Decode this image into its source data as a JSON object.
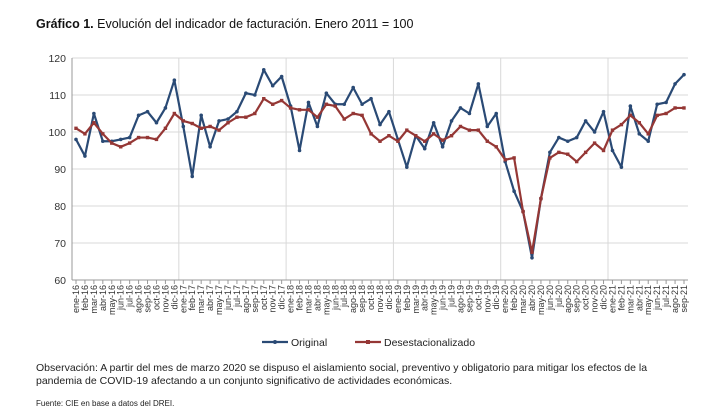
{
  "title_bold": "Gráfico 1.",
  "title_rest": " Evolución del indicador de facturación. Enero 2011 = 100",
  "observation": "Observación: A partir del mes de marzo 2020 se dispuso el aislamiento social, preventivo y obligatorio para mitigar los efectos de la pandemia de COVID-19 afectando a un conjunto significativo de actividades económicas.",
  "source": "Fuente: CIE en base a datos del DREI.",
  "chart_data": {
    "type": "line",
    "title": "Evolución del indicador de facturación. Enero 2011 = 100",
    "xlabel": "",
    "ylabel": "",
    "ylim": [
      60,
      120
    ],
    "yticks": [
      60,
      70,
      80,
      90,
      100,
      110,
      120
    ],
    "grid": true,
    "legend": "bottom",
    "x": [
      "ene-16",
      "feb-16",
      "mar-16",
      "abr-16",
      "may-16",
      "jun-16",
      "jul-16",
      "ago-16",
      "sep-16",
      "oct-16",
      "nov-16",
      "dic-16",
      "ene-17",
      "feb-17",
      "mar-17",
      "abr-17",
      "may-17",
      "jun-17",
      "jul-17",
      "ago-17",
      "sep-17",
      "oct-17",
      "nov-17",
      "dic-17",
      "ene-18",
      "feb-18",
      "mar-18",
      "abr-18",
      "may-18",
      "jun-18",
      "jul-18",
      "ago-18",
      "sep-18",
      "oct-18",
      "nov-18",
      "dic-18",
      "ene-19",
      "feb-19",
      "mar-19",
      "abr-19",
      "may-19",
      "jun-19",
      "jul-19",
      "ago-19",
      "sep-19",
      "oct-19",
      "nov-19",
      "dic-19",
      "ene-20",
      "feb-20",
      "mar-20",
      "abr-20",
      "may-20",
      "jun-20",
      "jul-20",
      "ago-20",
      "sep-20",
      "oct-20",
      "nov-20",
      "dic-20",
      "ene-21",
      "feb-21",
      "mar-21",
      "abr-21",
      "may-21",
      "jun-21",
      "jul-21",
      "ago-21",
      "sep-21"
    ],
    "series": [
      {
        "name": "Original",
        "color": "#2a4a75",
        "values": [
          98,
          93.5,
          105,
          97.5,
          97.5,
          98,
          98.5,
          104.5,
          105.5,
          102.5,
          106.5,
          114,
          101.5,
          88,
          104.5,
          96,
          103,
          103.5,
          105.5,
          110.5,
          110,
          116.8,
          112.5,
          115,
          107,
          95,
          108,
          101.5,
          110.5,
          107.5,
          107.5,
          112,
          107.5,
          109,
          102,
          105.5,
          98,
          90.5,
          99,
          95.5,
          102.5,
          96,
          103,
          106.5,
          105,
          113,
          101.5,
          105,
          92,
          84,
          78.5,
          66,
          82,
          94.5,
          98.5,
          97.5,
          98.5,
          103,
          100,
          105.5,
          95,
          90.5,
          107,
          99.5,
          97.5,
          107.5,
          108,
          113,
          115.5
        ]
      },
      {
        "name": "Desestacionalizado",
        "color": "#953735",
        "values": [
          101,
          99.5,
          102.5,
          99.5,
          97,
          96,
          97,
          98.5,
          98.5,
          98,
          101,
          105,
          103,
          102.3,
          101,
          101.5,
          100.5,
          102.5,
          104,
          104,
          105,
          109,
          107.5,
          108.5,
          106.5,
          106,
          106,
          104,
          107.5,
          107,
          103.5,
          105,
          104.5,
          99.5,
          97.5,
          99,
          97.5,
          100.5,
          99,
          97.5,
          99.5,
          97.8,
          99,
          101.5,
          100.5,
          100.5,
          97.5,
          96,
          92.5,
          93,
          78.5,
          67.5,
          82,
          93,
          94.5,
          94,
          92,
          94.5,
          97,
          95,
          100.5,
          102,
          104.5,
          102.5,
          99.5,
          104.5,
          105,
          106.5,
          106.5
        ]
      }
    ]
  }
}
